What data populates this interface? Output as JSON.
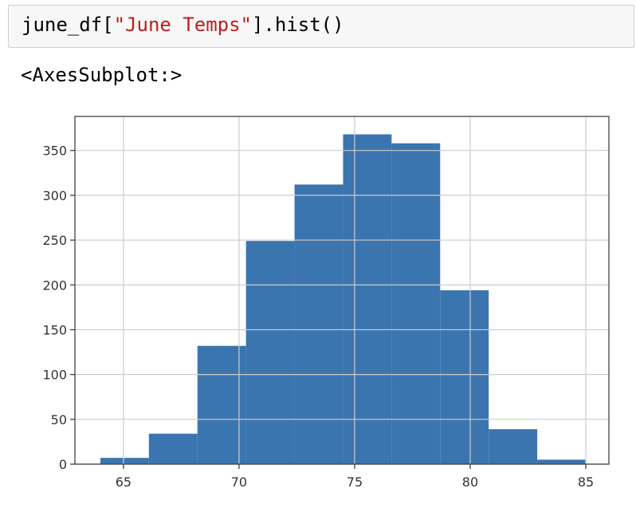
{
  "cell": {
    "code_prefix": "june_df[",
    "code_string": "\"June Temps\"",
    "code_suffix": "].hist()"
  },
  "output": {
    "repr": "<AxesSubplot:>"
  },
  "colors": {
    "bar": "#3b75af",
    "grid": "#cccccc",
    "axis": "#333333",
    "code_string": "#ba2121"
  },
  "chart_data": {
    "type": "bar",
    "title": "",
    "xlabel": "",
    "ylabel": "",
    "grid": true,
    "bins": [
      {
        "x0": 64,
        "x1": 66.1,
        "value": 7
      },
      {
        "x0": 66.1,
        "x1": 68.2,
        "value": 34
      },
      {
        "x0": 68.2,
        "x1": 70.3,
        "value": 132
      },
      {
        "x0": 70.3,
        "x1": 72.4,
        "value": 249
      },
      {
        "x0": 72.4,
        "x1": 74.5,
        "value": 312
      },
      {
        "x0": 74.5,
        "x1": 76.6,
        "value": 368
      },
      {
        "x0": 76.6,
        "x1": 78.7,
        "value": 358
      },
      {
        "x0": 78.7,
        "x1": 80.8,
        "value": 194
      },
      {
        "x0": 80.8,
        "x1": 82.9,
        "value": 39
      },
      {
        "x0": 82.9,
        "x1": 85,
        "value": 5
      }
    ],
    "xlim": [
      62.9,
      86.0
    ],
    "ylim": [
      0,
      388
    ],
    "xticks": [
      65,
      70,
      75,
      80,
      85
    ],
    "xtick_labels": [
      "65",
      "70",
      "75",
      "80",
      "85"
    ],
    "yticks": [
      0,
      50,
      100,
      150,
      200,
      250,
      300,
      350
    ],
    "ytick_labels": [
      "0",
      "50",
      "100",
      "150",
      "200",
      "250",
      "300",
      "350"
    ]
  }
}
